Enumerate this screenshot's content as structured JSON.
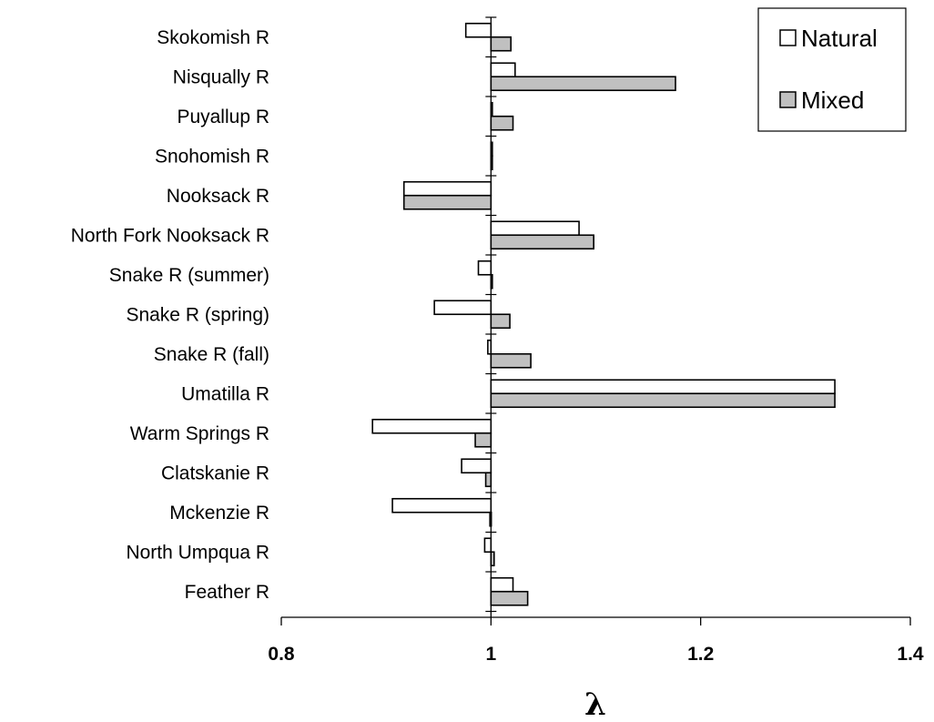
{
  "colors": {
    "natural_fill": "#ffffff",
    "mixed_fill": "#c0c0c0",
    "stroke": "#000000"
  },
  "legend": {
    "placement": "top-right",
    "entries": [
      "Natural",
      "Mixed"
    ]
  },
  "chart_data": {
    "type": "bar",
    "orientation": "horizontal",
    "baseline": 1,
    "categories": [
      "Skokomish R",
      "Nisqually R",
      "Puyallup R",
      "Snohomish R",
      "Nooksack R",
      "North Fork Nooksack R",
      "Snake R (summer)",
      "Snake R (spring)",
      "Snake R (fall)",
      "Umatilla R",
      "Warm Springs R",
      "Clatskanie R",
      "Mckenzie R",
      "North Umpqua R",
      "Feather R"
    ],
    "series": [
      {
        "name": "Natural",
        "values": [
          0.976,
          1.023,
          1.001,
          1.0,
          0.917,
          1.084,
          0.988,
          0.946,
          0.997,
          1.328,
          0.887,
          0.972,
          0.906,
          0.994,
          1.021
        ]
      },
      {
        "name": "Mixed",
        "values": [
          1.019,
          1.176,
          1.021,
          1.0,
          0.917,
          1.098,
          1.0,
          1.018,
          1.038,
          1.328,
          0.985,
          0.995,
          0.999,
          1.003,
          1.035
        ]
      }
    ],
    "xlabel": "λ",
    "xlim": [
      0.8,
      1.4
    ],
    "xticks": [
      0.8,
      1,
      1.2,
      1.4
    ],
    "xtick_labels": [
      "0.8",
      "1",
      "1.2",
      "1.4"
    ],
    "grid": false
  }
}
